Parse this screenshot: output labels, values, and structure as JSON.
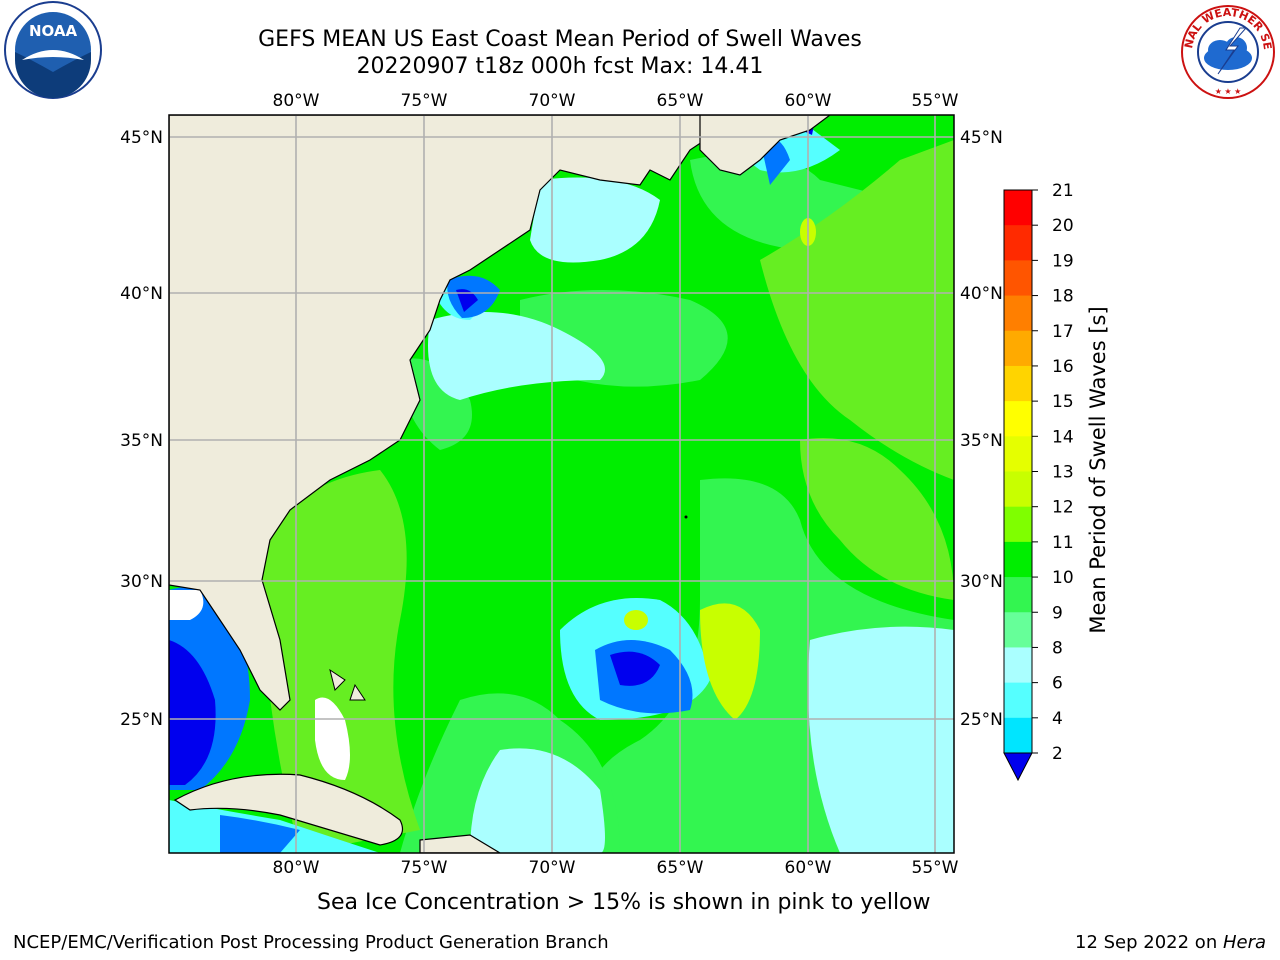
{
  "header": {
    "title_line_1": "GEFS MEAN US East Coast Mean Period of Swell Waves",
    "title_line_2": "20220907 t18z 000h fcst   Max: 14.41"
  },
  "map": {
    "lon_labels": [
      "80°W",
      "75°W",
      "70°W",
      "65°W",
      "60°W",
      "55°W"
    ],
    "lat_labels": [
      "45°N",
      "40°N",
      "35°N",
      "30°N",
      "25°N"
    ],
    "land_color": "#efecdc",
    "grid_color": "#b0b0b0"
  },
  "colorbar": {
    "title": "Mean Period of Swell Waves [s]",
    "ticks": [
      "21",
      "20",
      "19",
      "18",
      "17",
      "16",
      "15",
      "14",
      "13",
      "12",
      "11",
      "10",
      "9",
      "8",
      "6",
      "4",
      "2"
    ],
    "colors": [
      "#ff0000",
      "#ff2a00",
      "#ff5500",
      "#ff7f00",
      "#ffaa00",
      "#ffd400",
      "#ffff00",
      "#e5ff00",
      "#c8ff00",
      "#7fff00",
      "#00ee00",
      "#33f550",
      "#66ff99",
      "#aaffff",
      "#55ffff",
      "#00e5ff",
      "#0077ff"
    ],
    "extend_color": "#0000ee"
  },
  "subtitle": "Sea Ice Concentration > 15% is shown in pink to yellow",
  "footer": {
    "left": "NCEP/EMC/Verification Post Processing Product Generation Branch",
    "right_prefix": "12 Sep 2022 on ",
    "right_italic": "Hera"
  },
  "logos": {
    "noaa_text": "NOAA",
    "nws_text": "NATIONAL WEATHER SERVICE"
  }
}
